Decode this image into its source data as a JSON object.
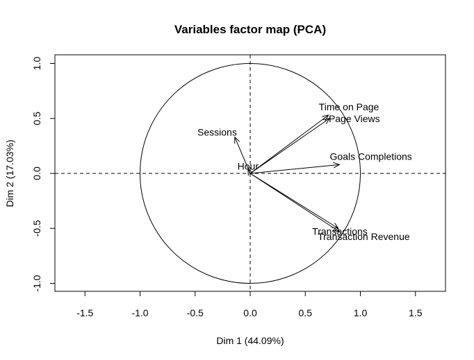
{
  "chart_data": {
    "type": "scatter",
    "title": "Variables factor map (PCA)",
    "xlabel": "Dim 1 (44.09%)",
    "ylabel": "Dim 2 (17.03%)",
    "xlim": [
      -1.8,
      1.8
    ],
    "ylim": [
      -1.1,
      1.08
    ],
    "xticks": [
      -1.5,
      -1.0,
      -0.5,
      0.0,
      0.5,
      1.0,
      1.5
    ],
    "xtick_labels": [
      "-1.5",
      "-1.0",
      "-0.5",
      "0.0",
      "0.5",
      "1.0",
      "1.5"
    ],
    "yticks": [
      -1.0,
      -0.5,
      0.0,
      0.5,
      1.0
    ],
    "ytick_labels": [
      "-1.0",
      "-0.5",
      "0.0",
      "0.5",
      "1.0"
    ],
    "unit_circle": true,
    "reference_lines": "dashed at x=0 and y=0",
    "grid": false,
    "variables": [
      {
        "name": "Time on Page",
        "x": 0.71,
        "y": 0.53
      },
      {
        "name": "Page Views",
        "x": 0.72,
        "y": 0.5
      },
      {
        "name": "Sessions",
        "x": -0.14,
        "y": 0.33
      },
      {
        "name": "Hour",
        "x": -0.02,
        "y": 0.04
      },
      {
        "name": "Goals Completions",
        "x": 0.81,
        "y": 0.08
      },
      {
        "name": "Transactions",
        "x": 0.8,
        "y": -0.5
      },
      {
        "name": "Transaction Revenue",
        "x": 0.81,
        "y": -0.53
      }
    ]
  }
}
